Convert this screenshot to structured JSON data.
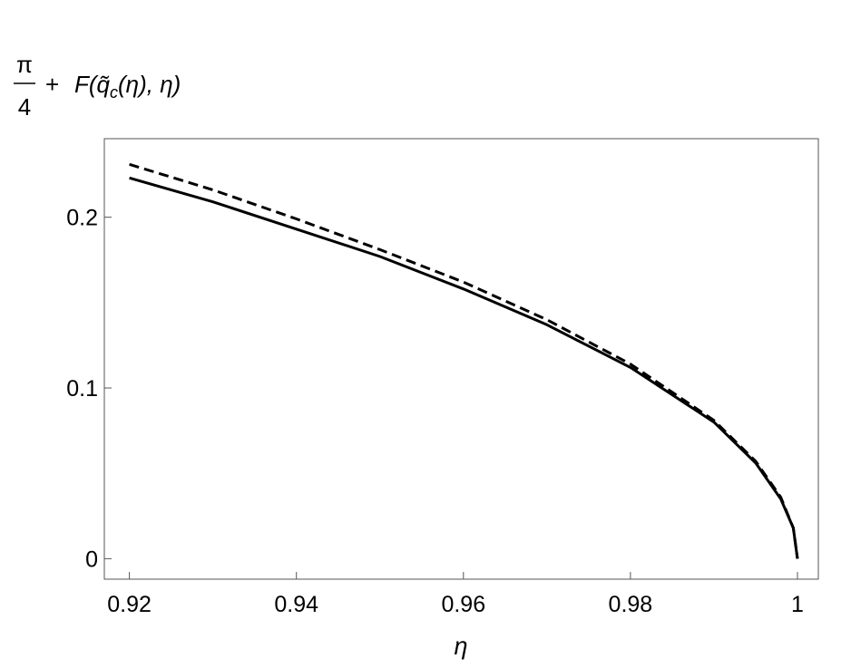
{
  "chart_data": {
    "type": "line",
    "title": "",
    "xlabel": "η",
    "ylabel": {
      "fraction_numerator": "π",
      "fraction_denominator": "4",
      "plus": "+",
      "expression_prefix": "F(",
      "q_symbol": "q̃",
      "q_subscript": "c",
      "expression_suffix": "(η), η)"
    },
    "xlim": [
      0.917,
      1.0025
    ],
    "ylim": [
      -0.012,
      0.246
    ],
    "xticks": [
      0.92,
      0.94,
      0.96,
      0.98,
      1.0
    ],
    "xtick_labels": [
      "0.92",
      "0.94",
      "0.96",
      "0.98",
      "1"
    ],
    "yticks": [
      0,
      0.1,
      0.2
    ],
    "ytick_labels": [
      "0",
      "0.1",
      "0.2"
    ],
    "grid": false,
    "series": [
      {
        "style": "solid",
        "color": "#000000",
        "x": [
          0.92,
          0.93,
          0.94,
          0.95,
          0.96,
          0.97,
          0.98,
          0.99,
          0.995,
          0.998,
          0.9995,
          1.0
        ],
        "y": [
          0.223,
          0.209,
          0.193,
          0.177,
          0.158,
          0.137,
          0.112,
          0.08,
          0.056,
          0.035,
          0.018,
          0.0
        ]
      },
      {
        "style": "dashed",
        "color": "#000000",
        "x": [
          0.92,
          0.93,
          0.94,
          0.95,
          0.96,
          0.97,
          0.98,
          0.99,
          0.995,
          0.998,
          0.9995,
          1.0
        ],
        "y": [
          0.231,
          0.216,
          0.199,
          0.181,
          0.162,
          0.14,
          0.114,
          0.081,
          0.057,
          0.036,
          0.018,
          0.0
        ]
      }
    ]
  }
}
